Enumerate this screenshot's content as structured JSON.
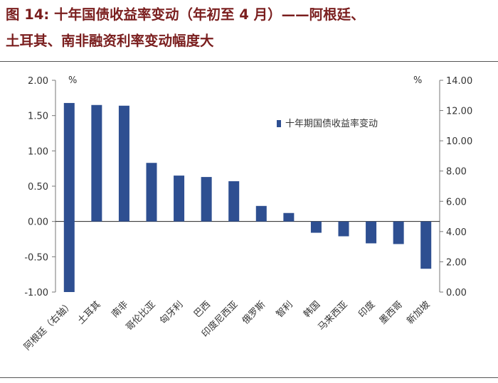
{
  "figure": {
    "title_line1": "图 14: 十年国债收益率变动（年初至 4 月）——阿根廷、",
    "title_line2": "土耳其、南非融资利率变动幅度大"
  },
  "colors": {
    "title": "#7a1e1e",
    "bar": "#2e4f91",
    "rule": "#555555"
  },
  "chart_data": {
    "type": "bar",
    "legend": {
      "label": "十年期国债收益率变动",
      "position": "top-right"
    },
    "left_axis": {
      "unit": "%",
      "ylim": [
        -1.0,
        2.0
      ],
      "ticks": [
        "2.00",
        "1.50",
        "1.00",
        "0.50",
        "0.00",
        "-0.50",
        "-1.00"
      ]
    },
    "right_axis": {
      "unit": "%",
      "ylim": [
        0.0,
        14.0
      ],
      "ticks": [
        "14.00",
        "12.00",
        "10.00",
        "8.00",
        "6.00",
        "4.00",
        "2.00",
        "0.00"
      ]
    },
    "categories": [
      "阿根廷（右轴）",
      "土耳其",
      "南非",
      "哥伦比亚",
      "匈牙利",
      "巴西",
      "印度尼西亚",
      "俄罗斯",
      "智利",
      "韩国",
      "马来西亚",
      "印度",
      "墨西哥",
      "新加坡"
    ],
    "series": [
      {
        "values": [
          12.5,
          1.65,
          1.64,
          0.83,
          0.65,
          0.63,
          0.57,
          0.22,
          0.12,
          -0.16,
          -0.21,
          -0.31,
          -0.32,
          -0.67
        ],
        "axis": [
          "right",
          "left",
          "left",
          "left",
          "left",
          "left",
          "left",
          "left",
          "left",
          "left",
          "left",
          "left",
          "left",
          "left"
        ]
      }
    ]
  }
}
